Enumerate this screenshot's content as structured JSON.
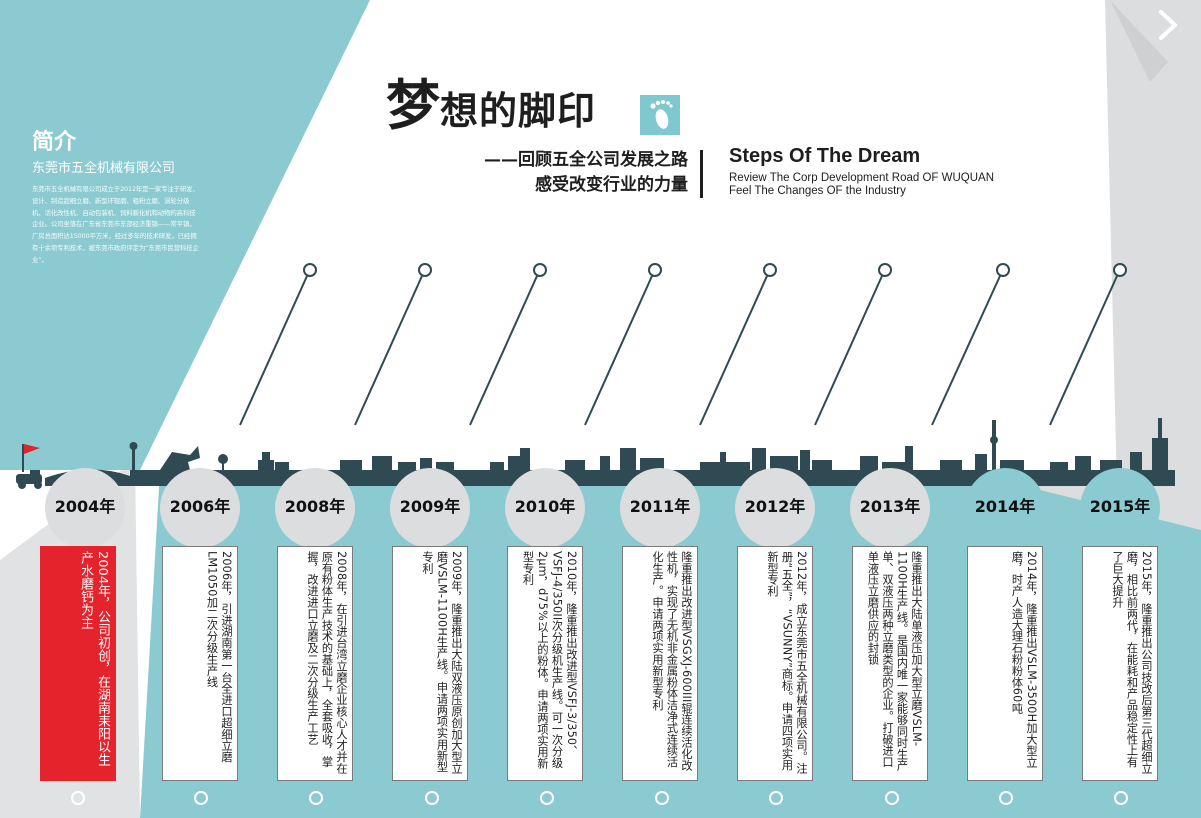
{
  "intro": {
    "title": "简介",
    "company": "东莞市五全机械有限公司",
    "body": "东莞市五全机械有限公司成立于2012年是一家专注于研发、设计、制造超细立磨、新型环辊磨、粗粉立磨、涡轮分级机、活化改性机、自动包装机、饲料膨化机和动物的高科技企业。公司坐落在广东省东莞市东部经济重镇——常平镇，厂房总面积达15000平方米，经过多年的技术研发，已经拥有十余项专利技术，被东莞市政府评定为“东莞市民营科技企业”。"
  },
  "header": {
    "title_first": "梦",
    "title_rest": "想的脚印",
    "footprint_icon": "footprint-icon",
    "cn_line1": "——回顾五全公司发展之路",
    "cn_line2": "感受改变行业的力量",
    "en_title": "Steps Of The Dream",
    "en_line1": "Review The Corp Development Road OF WUQUAN",
    "en_line2": "Feel The Changes OF the Industry"
  },
  "nav": {
    "next_icon": "chevron-right-icon"
  },
  "colors": {
    "teal": "#8ccad1",
    "gray": "#dcdddf",
    "dark": "#2f4a52",
    "red": "#e4232d"
  },
  "timeline": [
    {
      "year": "2004年",
      "text": "2004年，公司初创，在湖南耒阳以生产水磨钙为主"
    },
    {
      "year": "2006年",
      "text": "2006年，引进湖南第一台全进口超细立磨LM1050加二次分级生产线"
    },
    {
      "year": "2008年",
      "text": "2008年，在引进台湾立磨企业核心人才并在原有粉体生产技术的基础上，全套吸收，掌握，改进进口立磨及二次分级生产工艺"
    },
    {
      "year": "2009年",
      "text": "2009年，隆重推出大陆双液压原创加大型立磨VSLM-1100H生产线。申请两项实用新型专利"
    },
    {
      "year": "2010年",
      "text": "2010年，隆重推出改进型VSFJ-3/350、VSFJ-4/350II次分级机生产线。可一次分级2μm，d75%以上的粉体。申请两项实用新型专利"
    },
    {
      "year": "2011年",
      "text": "隆重推出改进型VSGXJ-600III辊连续活化改性机，实现了无机非金属粉体洁净式连续活化生产。申请两项实用新型专利"
    },
    {
      "year": "2012年",
      "text": "2012年，成立东莞市五全机械有限公司。注册“五全”，“VSUNNY”商标。申请四项实用新型专利"
    },
    {
      "year": "2013年",
      "text": "隆重推出大陆单液压加大型立磨VSLM-1100H生产线。是国内唯一家能够同时生产单、双液压两种立磨类型的企业。打破进口单液压立磨供应的封锁"
    },
    {
      "year": "2014年",
      "text": "2014年，隆重推出VSLM-3500H加大型立磨，时产人造大理石粉粉体60吨"
    },
    {
      "year": "2015年",
      "text": "2015年，隆重推出公司技改后第三代超细立磨，相比前两代，在能耗和产品稳定性上有了巨大提升"
    }
  ]
}
